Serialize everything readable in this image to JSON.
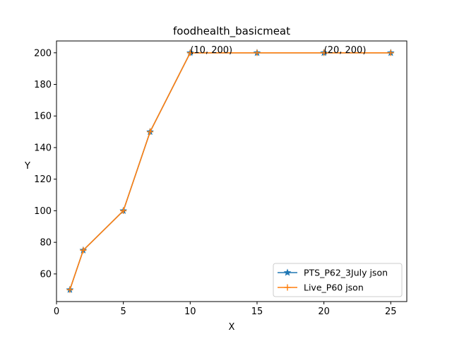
{
  "chart_data": {
    "type": "line",
    "title": "foodhealth_basicmeat",
    "xlabel": "X",
    "ylabel": "Y",
    "xlim": [
      0,
      26.2
    ],
    "ylim": [
      42.5,
      207.5
    ],
    "xticks": [
      0,
      5,
      10,
      15,
      20,
      25
    ],
    "yticks": [
      60,
      80,
      100,
      120,
      140,
      160,
      180,
      200
    ],
    "grid": false,
    "legend_position": "lower-right",
    "series": [
      {
        "name": "PTS_P62_3July json",
        "color": "#1f77b4",
        "marker": "star",
        "x": [
          1,
          2,
          5,
          7,
          10,
          15,
          20,
          25
        ],
        "y": [
          50,
          75,
          100,
          150,
          200,
          200,
          200,
          200
        ]
      },
      {
        "name": "Live_P60 json",
        "color": "#ff7f0e",
        "marker": "plus",
        "x": [
          1,
          2,
          5,
          7,
          10,
          15,
          20,
          25
        ],
        "y": [
          50,
          75,
          100,
          150,
          200,
          200,
          200,
          200
        ]
      }
    ],
    "annotations": [
      {
        "x": 10,
        "y": 200,
        "text": "(10, 200)"
      },
      {
        "x": 20,
        "y": 200,
        "text": "(20, 200)"
      }
    ]
  }
}
